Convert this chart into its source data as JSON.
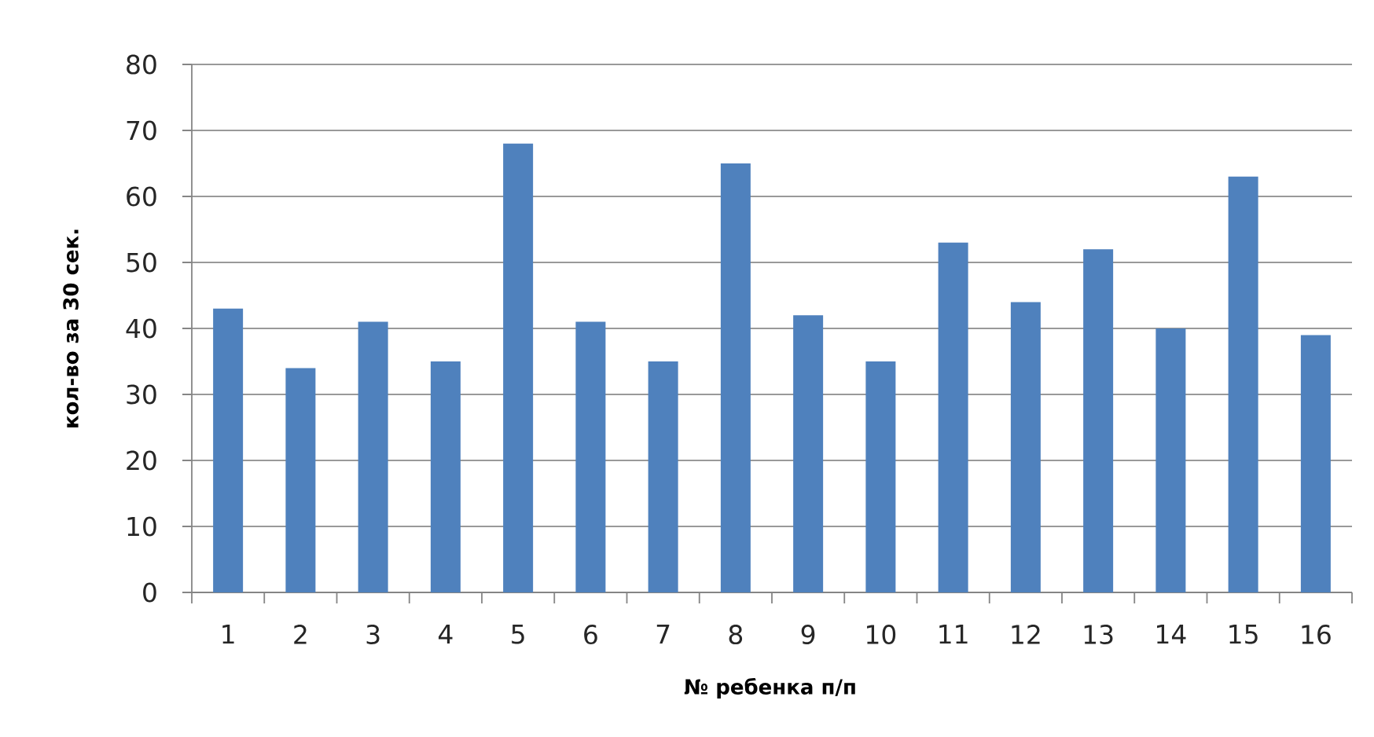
{
  "chart_data": {
    "type": "bar",
    "xlabel": "№ ребенка п/п",
    "ylabel": "кол-во за 30 сек.",
    "categories": [
      "1",
      "2",
      "3",
      "4",
      "5",
      "6",
      "7",
      "8",
      "9",
      "10",
      "11",
      "12",
      "13",
      "14",
      "15",
      "16"
    ],
    "values": [
      43,
      34,
      41,
      35,
      68,
      41,
      35,
      65,
      42,
      35,
      53,
      44,
      52,
      40,
      63,
      39
    ],
    "color": "#4f81bd",
    "ylim": [
      0,
      80
    ],
    "yticks": [
      0,
      10,
      20,
      30,
      40,
      50,
      60,
      70,
      80
    ],
    "grid": "y"
  }
}
